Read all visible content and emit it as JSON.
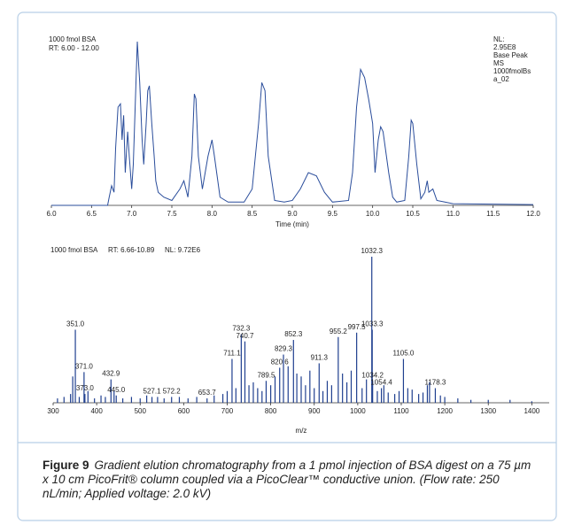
{
  "chart_data": [
    {
      "type": "line",
      "header": [
        "1000 fmol BSA",
        "RT: 6.00 - 12.00"
      ],
      "side_notes": [
        "NL:",
        "2.95E8",
        "Base Peak",
        "MS",
        "1000fmolBs",
        "a_02"
      ],
      "x_label": "Time (min)",
      "x": [
        6.0,
        6.7,
        6.72,
        6.75,
        6.78,
        6.8,
        6.83,
        6.86,
        6.88,
        6.9,
        6.92,
        6.95,
        6.97,
        7.0,
        7.02,
        7.05,
        7.07,
        7.1,
        7.13,
        7.15,
        7.18,
        7.2,
        7.22,
        7.25,
        7.28,
        7.3,
        7.33,
        7.4,
        7.5,
        7.6,
        7.65,
        7.7,
        7.75,
        7.78,
        7.8,
        7.83,
        7.88,
        7.95,
        8.0,
        8.03,
        8.1,
        8.2,
        8.4,
        8.5,
        8.58,
        8.62,
        8.66,
        8.7,
        8.78,
        8.9,
        9.0,
        9.1,
        9.2,
        9.3,
        9.4,
        9.5,
        9.7,
        9.75,
        9.8,
        9.85,
        9.9,
        9.95,
        10.0,
        10.03,
        10.07,
        10.1,
        10.13,
        10.2,
        10.25,
        10.3,
        10.4,
        10.45,
        10.48,
        10.5,
        10.55,
        10.6,
        10.65,
        10.68,
        10.7,
        10.75,
        10.8,
        10.9,
        11.0,
        12.0
      ],
      "series": [
        {
          "color": "#2a4d9b",
          "values": [
            0,
            0,
            5,
            12,
            8,
            35,
            60,
            62,
            40,
            55,
            20,
            45,
            30,
            10,
            25,
            70,
            100,
            75,
            40,
            25,
            50,
            70,
            73,
            50,
            30,
            15,
            8,
            5,
            3,
            10,
            15,
            5,
            30,
            68,
            65,
            30,
            10,
            30,
            40,
            30,
            5,
            2,
            2,
            10,
            50,
            75,
            70,
            30,
            3,
            2,
            3,
            10,
            20,
            18,
            8,
            2,
            3,
            20,
            60,
            83,
            78,
            65,
            50,
            20,
            40,
            48,
            45,
            20,
            5,
            2,
            3,
            30,
            52,
            50,
            25,
            4,
            8,
            15,
            8,
            10,
            3,
            2,
            1,
            0.5
          ]
        }
      ],
      "xlim": [
        6,
        12
      ],
      "ylim": [
        0,
        100
      ],
      "xticks": [
        {
          "value": 6,
          "label": "6.0"
        },
        {
          "value": 6.5,
          "label": "6.5"
        },
        {
          "value": 7,
          "label": "7.0"
        },
        {
          "value": 7.5,
          "label": "7.5"
        },
        {
          "value": 8,
          "label": "8.0"
        },
        {
          "value": 8.5,
          "label": "8.5"
        },
        {
          "value": 9,
          "label": "9.0"
        },
        {
          "value": 9.5,
          "label": "9.5"
        },
        {
          "value": 10,
          "label": "10.0"
        },
        {
          "value": 10.5,
          "label": "10.5"
        },
        {
          "value": 11,
          "label": "11.0"
        },
        {
          "value": 11.5,
          "label": "11.5"
        },
        {
          "value": 12,
          "label": "12.0"
        }
      ]
    },
    {
      "type": "stem",
      "header": [
        "1000 fmol BSA",
        "RT: 6.66-10.89",
        "NL: 9.72E6"
      ],
      "x_label": "m/z",
      "series": [
        {
          "color": "#1f3f8f",
          "x": [
            351.0,
            371.0,
            373.0,
            432.9,
            445.0,
            527.1,
            572.2,
            653.7,
            711.1,
            732.3,
            740.7,
            789.5,
            820.6,
            829.3,
            852.3,
            911.3,
            955.2,
            997.5,
            1032.3,
            1033.3,
            1034.2,
            1054.4,
            1105.0,
            1178.3
          ],
          "labels": [
            "351.0",
            "371.0",
            "373.0",
            "432.9",
            "445.0",
            "527.1",
            "572.2",
            "653.7",
            "711.1",
            "732.3",
            "740.7",
            "789.5",
            "820.6",
            "829.3",
            "852.3",
            "911.3",
            "955.2",
            "997.5",
            "1032.3",
            "1033.3",
            "1034.2",
            "1054.4",
            "1105.0",
            "1178.3"
          ],
          "values": [
            50,
            21,
            6,
            16,
            5,
            4,
            4,
            3,
            30,
            47,
            42,
            15,
            24,
            33,
            43,
            27,
            45,
            48,
            100,
            50,
            15,
            10,
            30,
            10
          ]
        },
        {
          "color": "#1f3f8f",
          "x": [
            310,
            325,
            340,
            345,
            360,
            380,
            395,
            410,
            420,
            440,
            460,
            480,
            500,
            515,
            540,
            555,
            590,
            610,
            630,
            670,
            690,
            700,
            720,
            750,
            760,
            770,
            780,
            800,
            810,
            840,
            860,
            870,
            880,
            890,
            900,
            920,
            930,
            940,
            965,
            975,
            985,
            1010,
            1020,
            1045,
            1060,
            1070,
            1085,
            1095,
            1115,
            1125,
            1140,
            1150,
            1160,
            1165,
            1190,
            1200,
            1230,
            1260,
            1300,
            1350,
            1400
          ],
          "values": [
            3,
            4,
            6,
            18,
            4,
            8,
            3,
            5,
            4,
            8,
            3,
            4,
            3,
            5,
            4,
            3,
            4,
            3,
            4,
            5,
            6,
            8,
            10,
            12,
            14,
            10,
            8,
            12,
            18,
            25,
            20,
            18,
            12,
            22,
            10,
            8,
            15,
            12,
            20,
            14,
            22,
            10,
            16,
            8,
            12,
            7,
            6,
            8,
            10,
            9,
            6,
            7,
            12,
            14,
            5,
            4,
            3,
            2,
            2,
            2,
            1
          ]
        }
      ],
      "xlim": [
        300,
        1440
      ],
      "ylim": [
        0,
        100
      ],
      "xticks": [
        300,
        400,
        500,
        600,
        700,
        800,
        900,
        1000,
        1100,
        1200,
        1300,
        1400
      ]
    }
  ],
  "caption": {
    "label": "Figure 9",
    "text": "Gradient elution chromatography from a 1 pmol injection of BSA digest on a 75 µm x 10 cm PicoFrit® column coupled via a PicoClear™ conductive union. (Flow rate: 250 nL/min; Applied voltage: 2.0 kV)"
  }
}
